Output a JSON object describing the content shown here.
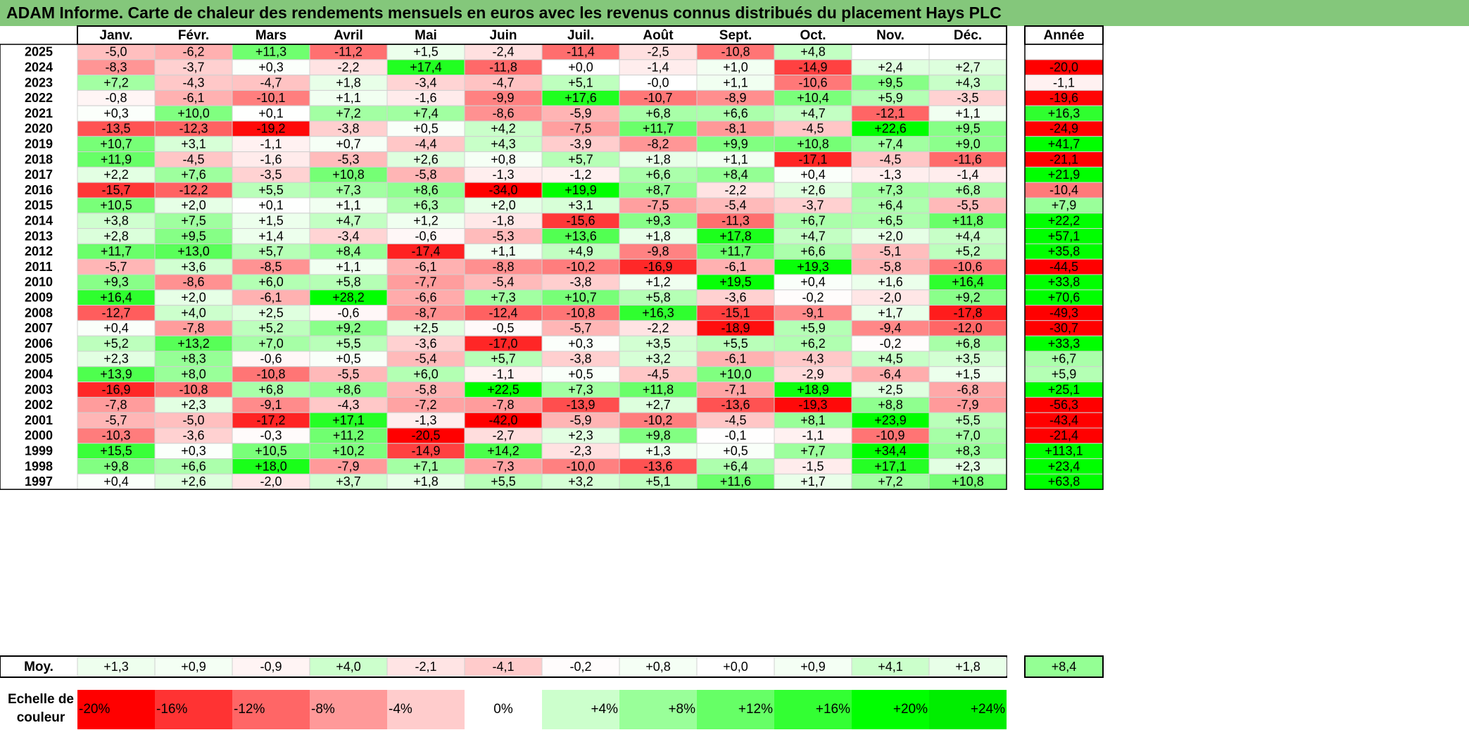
{
  "chart_data": {
    "type": "heatmap",
    "title": "ADAM Informe. Carte de chaleur des rendements mensuels en euros avec les revenus connus distribués du placement Hays PLC",
    "months": [
      "Janv.",
      "Févr.",
      "Mars",
      "Avril",
      "Mai",
      "Juin",
      "Juil.",
      "Août",
      "Sept.",
      "Oct.",
      "Nov.",
      "Déc."
    ],
    "year_header": "Année",
    "rows": [
      {
        "year": "2025",
        "values": [
          "-5,0",
          "-6,2",
          "+11,3",
          "-11,2",
          "+1,5",
          "-2,4",
          "-11,4",
          "-2,5",
          "-10,8",
          "+4,8",
          "",
          ""
        ],
        "annual": ""
      },
      {
        "year": "2024",
        "values": [
          "-8,3",
          "-3,7",
          "+0,3",
          "-2,2",
          "+17,4",
          "-11,8",
          "+0,0",
          "-1,4",
          "+1,0",
          "-14,9",
          "+2,4",
          "+2,7"
        ],
        "annual": "-20,0"
      },
      {
        "year": "2023",
        "values": [
          "+7,2",
          "-4,3",
          "-4,7",
          "+1,8",
          "-3,4",
          "-4,7",
          "+5,1",
          "-0,0",
          "+1,1",
          "-10,6",
          "+9,5",
          "+4,3"
        ],
        "annual": "-1,1"
      },
      {
        "year": "2022",
        "values": [
          "-0,8",
          "-6,1",
          "-10,1",
          "+1,1",
          "-1,6",
          "-9,9",
          "+17,6",
          "-10,7",
          "-8,9",
          "+10,4",
          "+5,9",
          "-3,5"
        ],
        "annual": "-19,6"
      },
      {
        "year": "2021",
        "values": [
          "+0,3",
          "+10,0",
          "+0,1",
          "+7,2",
          "+7,4",
          "-8,6",
          "-5,9",
          "+6,8",
          "+6,6",
          "+4,7",
          "-12,1",
          "+1,1"
        ],
        "annual": "+16,3"
      },
      {
        "year": "2020",
        "values": [
          "-13,5",
          "-12,3",
          "-19,2",
          "-3,8",
          "+0,5",
          "+4,2",
          "-7,5",
          "+11,7",
          "-8,1",
          "-4,5",
          "+22,6",
          "+9,5"
        ],
        "annual": "-24,9"
      },
      {
        "year": "2019",
        "values": [
          "+10,7",
          "+3,1",
          "-1,1",
          "+0,7",
          "-4,4",
          "+4,3",
          "-3,9",
          "-8,2",
          "+9,9",
          "+10,8",
          "+7,4",
          "+9,0"
        ],
        "annual": "+41,7"
      },
      {
        "year": "2018",
        "values": [
          "+11,9",
          "-4,5",
          "-1,6",
          "-5,3",
          "+2,6",
          "+0,8",
          "+5,7",
          "+1,8",
          "+1,1",
          "-17,1",
          "-4,5",
          "-11,6"
        ],
        "annual": "-21,1"
      },
      {
        "year": "2017",
        "values": [
          "+2,2",
          "+7,6",
          "-3,5",
          "+10,8",
          "-5,8",
          "-1,3",
          "-1,2",
          "+6,6",
          "+8,4",
          "+0,4",
          "-1,3",
          "-1,4"
        ],
        "annual": "+21,9"
      },
      {
        "year": "2016",
        "values": [
          "-15,7",
          "-12,2",
          "+5,5",
          "+7,3",
          "+8,6",
          "-34,0",
          "+19,9",
          "+8,7",
          "-2,2",
          "+2,6",
          "+7,3",
          "+6,8"
        ],
        "annual": "-10,4"
      },
      {
        "year": "2015",
        "values": [
          "+10,5",
          "+2,0",
          "+0,1",
          "+1,1",
          "+6,3",
          "+2,0",
          "+3,1",
          "-7,5",
          "-5,4",
          "-3,7",
          "+6,4",
          "-5,5"
        ],
        "annual": "+7,9"
      },
      {
        "year": "2014",
        "values": [
          "+3,8",
          "+7,5",
          "+1,5",
          "+4,7",
          "+1,2",
          "-1,8",
          "-15,6",
          "+9,3",
          "-11,3",
          "+6,7",
          "+6,5",
          "+11,8"
        ],
        "annual": "+22,2"
      },
      {
        "year": "2013",
        "values": [
          "+2,8",
          "+9,5",
          "+1,4",
          "-3,4",
          "-0,6",
          "-5,3",
          "+13,6",
          "+1,8",
          "+17,8",
          "+4,7",
          "+2,0",
          "+4,4"
        ],
        "annual": "+57,1"
      },
      {
        "year": "2012",
        "values": [
          "+11,7",
          "+13,0",
          "+5,7",
          "+8,4",
          "-17,4",
          "+1,1",
          "+4,9",
          "-9,8",
          "+11,7",
          "+6,6",
          "-5,1",
          "+5,2"
        ],
        "annual": "+35,8"
      },
      {
        "year": "2011",
        "values": [
          "-5,7",
          "+3,6",
          "-8,5",
          "+1,1",
          "-6,1",
          "-8,8",
          "-10,2",
          "-16,9",
          "-6,1",
          "+19,3",
          "-5,8",
          "-10,6"
        ],
        "annual": "-44,5"
      },
      {
        "year": "2010",
        "values": [
          "+9,3",
          "-8,6",
          "+6,0",
          "+5,8",
          "-7,7",
          "-5,4",
          "-3,8",
          "+1,2",
          "+19,5",
          "+0,4",
          "+1,6",
          "+16,4"
        ],
        "annual": "+33,8"
      },
      {
        "year": "2009",
        "values": [
          "+16,4",
          "+2,0",
          "-6,1",
          "+28,2",
          "-6,6",
          "+7,3",
          "+10,7",
          "+5,8",
          "-3,6",
          "-0,2",
          "-2,0",
          "+9,2"
        ],
        "annual": "+70,6"
      },
      {
        "year": "2008",
        "values": [
          "-12,7",
          "+4,0",
          "+2,5",
          "-0,6",
          "-8,7",
          "-12,4",
          "-10,8",
          "+16,3",
          "-15,1",
          "-9,1",
          "+1,7",
          "-17,8"
        ],
        "annual": "-49,3"
      },
      {
        "year": "2007",
        "values": [
          "+0,4",
          "-7,8",
          "+5,2",
          "+9,2",
          "+2,5",
          "-0,5",
          "-5,7",
          "-2,2",
          "-18,9",
          "+5,9",
          "-9,4",
          "-12,0"
        ],
        "annual": "-30,7"
      },
      {
        "year": "2006",
        "values": [
          "+5,2",
          "+13,2",
          "+7,0",
          "+5,5",
          "-3,6",
          "-17,0",
          "+0,3",
          "+3,5",
          "+5,5",
          "+6,2",
          "-0,2",
          "+6,8"
        ],
        "annual": "+33,3"
      },
      {
        "year": "2005",
        "values": [
          "+2,3",
          "+8,3",
          "-0,6",
          "+0,5",
          "-5,4",
          "+5,7",
          "-3,8",
          "+3,2",
          "-6,1",
          "-4,3",
          "+4,5",
          "+3,5"
        ],
        "annual": "+6,7"
      },
      {
        "year": "2004",
        "values": [
          "+13,9",
          "+8,0",
          "-10,8",
          "-5,5",
          "+6,0",
          "-1,1",
          "+0,5",
          "-4,5",
          "+10,0",
          "-2,9",
          "-6,4",
          "+1,5"
        ],
        "annual": "+5,9"
      },
      {
        "year": "2003",
        "values": [
          "-16,9",
          "-10,8",
          "+6,8",
          "+8,6",
          "-5,8",
          "+22,5",
          "+7,3",
          "+11,8",
          "-7,1",
          "+18,9",
          "+2,5",
          "-6,8"
        ],
        "annual": "+25,1"
      },
      {
        "year": "2002",
        "values": [
          "-7,8",
          "+2,3",
          "-9,1",
          "-4,3",
          "-7,2",
          "-7,8",
          "-13,9",
          "+2,7",
          "-13,6",
          "-19,3",
          "+8,8",
          "-7,9"
        ],
        "annual": "-56,3"
      },
      {
        "year": "2001",
        "values": [
          "-5,7",
          "-5,0",
          "-17,2",
          "+17,1",
          "-1,3",
          "-42,0",
          "-5,9",
          "-10,2",
          "-4,5",
          "+8,1",
          "+23,9",
          "+5,5"
        ],
        "annual": "-43,4"
      },
      {
        "year": "2000",
        "values": [
          "-10,3",
          "-3,6",
          "-0,3",
          "+11,2",
          "-20,5",
          "-2,7",
          "+2,3",
          "+9,8",
          "-0,1",
          "-1,1",
          "-10,9",
          "+7,0"
        ],
        "annual": "-21,4"
      },
      {
        "year": "1999",
        "values": [
          "+15,5",
          "+0,3",
          "+10,5",
          "+10,2",
          "-14,9",
          "+14,2",
          "-2,3",
          "+1,3",
          "+0,5",
          "+7,7",
          "+34,4",
          "+8,3"
        ],
        "annual": "+113,1"
      },
      {
        "year": "1998",
        "values": [
          "+9,8",
          "+6,6",
          "+18,0",
          "-7,9",
          "+7,1",
          "-7,3",
          "-10,0",
          "-13,6",
          "+6,4",
          "-1,5",
          "+17,1",
          "+2,3"
        ],
        "annual": "+23,4"
      },
      {
        "year": "1997",
        "values": [
          "+0,4",
          "+2,6",
          "-2,0",
          "+3,7",
          "+1,8",
          "+5,5",
          "+3,2",
          "+5,1",
          "+11,6",
          "+1,7",
          "+7,2",
          "+10,8"
        ],
        "annual": "+63,8"
      }
    ],
    "average": {
      "label": "Moy.",
      "values": [
        "+1,3",
        "+0,9",
        "-0,9",
        "+4,0",
        "-2,1",
        "-4,1",
        "-0,2",
        "+0,8",
        "+0,0",
        "+0,9",
        "+4,1",
        "+1,8"
      ],
      "annual": "+8,4"
    },
    "scale": {
      "label_line1": "Echelle de",
      "label_line2": "couleur",
      "stops": [
        "-20%",
        "-16%",
        "-12%",
        "-8%",
        "-4%",
        "0%",
        "+4%",
        "+8%",
        "+12%",
        "+16%",
        "+20%",
        "+24%"
      ]
    },
    "colors": {
      "title_bg": "#84c77b",
      "negative_max": "#ff0000",
      "neutral": "#ffffff",
      "positive_max": "#00ff00"
    }
  }
}
